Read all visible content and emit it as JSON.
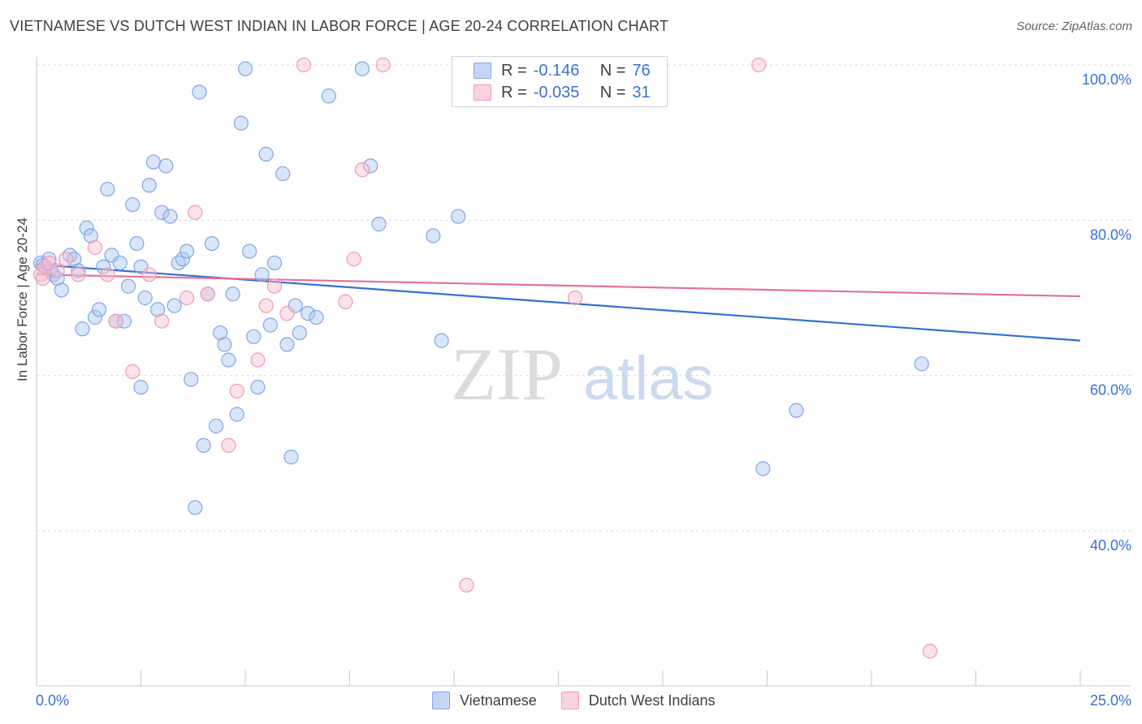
{
  "header": {
    "title": "VIETNAMESE VS DUTCH WEST INDIAN IN LABOR FORCE | AGE 20-24 CORRELATION CHART",
    "source": "Source: ZipAtlas.com"
  },
  "watermark": {
    "zip": "ZIP",
    "atlas": "atlas"
  },
  "legend_top": {
    "rows": [
      {
        "r_label": "R =",
        "r_value": "-0.146",
        "n_label": "N =",
        "n_value": "76",
        "color": "#7fa6e8"
      },
      {
        "r_label": "R =",
        "r_value": "-0.035",
        "n_label": "N =",
        "n_value": "31",
        "color": "#f29ab5"
      }
    ]
  },
  "legend_bottom": {
    "items": [
      {
        "label": "Vietnamese",
        "color": "#7fa6e8"
      },
      {
        "label": "Dutch West Indians",
        "color": "#f29ab5"
      }
    ]
  },
  "chart_data": {
    "type": "scatter",
    "title": "VIETNAMESE VS DUTCH WEST INDIAN IN LABOR FORCE | AGE 20-24 CORRELATION CHART",
    "xlabel": "",
    "ylabel": "In Labor Force | Age 20-24",
    "xlim": [
      0,
      25
    ],
    "ylim": [
      20,
      103
    ],
    "x_tick_labels": [
      "0.0%",
      "25.0%"
    ],
    "y_ticks": [
      40,
      60,
      80,
      100
    ],
    "y_tick_labels": [
      "40.0%",
      "60.0%",
      "80.0%",
      "100.0%"
    ],
    "grid": true,
    "series": [
      {
        "name": "Vietnamese",
        "color": "#7fa6e8",
        "trend": {
          "x": [
            0,
            25
          ],
          "y": [
            74.3,
            64.5
          ],
          "color": "#3470d0"
        },
        "points": [
          [
            0.1,
            74.5
          ],
          [
            0.2,
            74.0
          ],
          [
            0.3,
            75.0
          ],
          [
            0.35,
            73.5
          ],
          [
            0.4,
            73.0
          ],
          [
            0.5,
            72.5
          ],
          [
            0.6,
            71.0
          ],
          [
            0.8,
            75.5
          ],
          [
            0.9,
            75.0
          ],
          [
            1.0,
            73.5
          ],
          [
            1.1,
            66.0
          ],
          [
            1.2,
            79.0
          ],
          [
            1.3,
            78.0
          ],
          [
            1.4,
            67.5
          ],
          [
            1.5,
            68.5
          ],
          [
            1.6,
            74.0
          ],
          [
            1.7,
            84.0
          ],
          [
            1.8,
            75.5
          ],
          [
            1.9,
            67.0
          ],
          [
            2.0,
            74.5
          ],
          [
            2.1,
            67.0
          ],
          [
            2.2,
            71.5
          ],
          [
            2.3,
            82.0
          ],
          [
            2.4,
            77.0
          ],
          [
            2.5,
            74.0
          ],
          [
            2.6,
            70.0
          ],
          [
            2.5,
            58.5
          ],
          [
            2.7,
            84.5
          ],
          [
            2.8,
            87.5
          ],
          [
            2.9,
            68.5
          ],
          [
            3.0,
            81.0
          ],
          [
            3.1,
            87.0
          ],
          [
            3.2,
            80.5
          ],
          [
            3.3,
            69.0
          ],
          [
            3.4,
            74.5
          ],
          [
            3.5,
            75.0
          ],
          [
            3.6,
            76.0
          ],
          [
            3.7,
            59.5
          ],
          [
            3.8,
            43.0
          ],
          [
            3.9,
            96.5
          ],
          [
            4.0,
            51.0
          ],
          [
            4.1,
            70.5
          ],
          [
            4.2,
            77.0
          ],
          [
            4.3,
            53.5
          ],
          [
            4.4,
            65.5
          ],
          [
            4.5,
            64.0
          ],
          [
            4.6,
            62.0
          ],
          [
            4.7,
            70.5
          ],
          [
            4.8,
            55.0
          ],
          [
            4.9,
            92.5
          ],
          [
            5.0,
            99.5
          ],
          [
            5.1,
            76.0
          ],
          [
            5.2,
            65.0
          ],
          [
            5.3,
            58.5
          ],
          [
            5.4,
            73.0
          ],
          [
            5.5,
            88.5
          ],
          [
            5.6,
            66.5
          ],
          [
            5.7,
            74.5
          ],
          [
            5.9,
            86.0
          ],
          [
            6.0,
            64.0
          ],
          [
            6.1,
            49.5
          ],
          [
            6.2,
            69.0
          ],
          [
            6.3,
            65.5
          ],
          [
            6.5,
            68.0
          ],
          [
            6.7,
            67.5
          ],
          [
            7.0,
            96.0
          ],
          [
            7.8,
            99.5
          ],
          [
            8.0,
            87.0
          ],
          [
            8.2,
            79.5
          ],
          [
            9.5,
            78.0
          ],
          [
            9.7,
            64.5
          ],
          [
            10.1,
            80.5
          ],
          [
            17.4,
            48.0
          ],
          [
            18.2,
            55.5
          ],
          [
            21.2,
            61.5
          ],
          [
            0.15,
            74.2
          ]
        ]
      },
      {
        "name": "Dutch West Indians",
        "color": "#f29ab5",
        "trend": {
          "x": [
            0,
            25
          ],
          "y": [
            73.0,
            70.2
          ],
          "color": "#e5709a"
        },
        "points": [
          [
            0.1,
            73.0
          ],
          [
            0.15,
            72.5
          ],
          [
            0.2,
            74.0
          ],
          [
            0.3,
            74.5
          ],
          [
            0.5,
            73.5
          ],
          [
            0.7,
            75.0
          ],
          [
            1.0,
            73.0
          ],
          [
            1.4,
            76.5
          ],
          [
            1.7,
            73.0
          ],
          [
            1.9,
            67.0
          ],
          [
            2.3,
            60.5
          ],
          [
            2.7,
            73.0
          ],
          [
            3.0,
            67.0
          ],
          [
            3.6,
            70.0
          ],
          [
            3.8,
            81.0
          ],
          [
            4.1,
            70.5
          ],
          [
            4.6,
            51.0
          ],
          [
            4.8,
            58.0
          ],
          [
            5.3,
            62.0
          ],
          [
            5.5,
            69.0
          ],
          [
            5.7,
            71.5
          ],
          [
            6.0,
            68.0
          ],
          [
            6.4,
            100.0
          ],
          [
            7.4,
            69.5
          ],
          [
            7.6,
            75.0
          ],
          [
            7.8,
            86.5
          ],
          [
            8.3,
            100.0
          ],
          [
            10.3,
            33.0
          ],
          [
            12.9,
            70.0
          ],
          [
            17.3,
            100.0
          ],
          [
            21.4,
            24.5
          ]
        ]
      }
    ]
  }
}
